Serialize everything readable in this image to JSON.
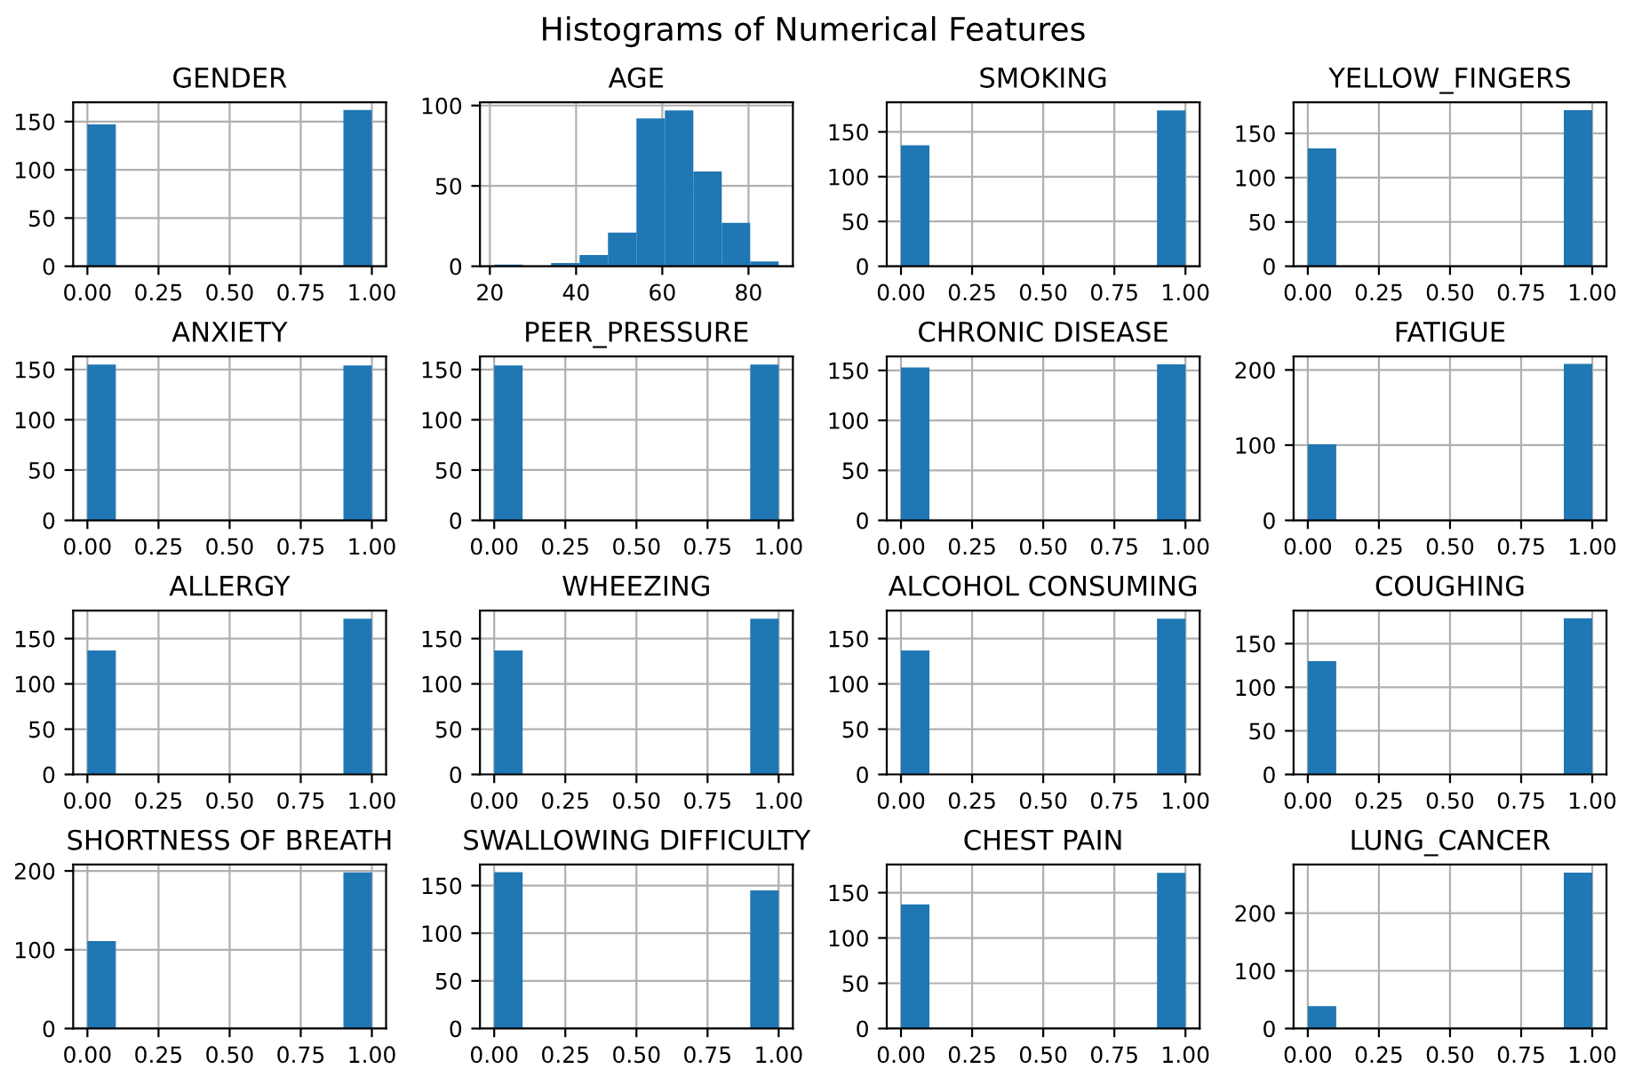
{
  "chart_data": [
    {
      "type": "histogram",
      "title": "GENDER",
      "annotations": [
        "Histograms of Numerical Features"
      ],
      "bins": [
        0,
        0.1,
        0.2,
        0.3,
        0.4,
        0.5,
        0.6,
        0.7,
        0.8,
        0.9,
        1.0
      ],
      "values": [
        147,
        0,
        0,
        0,
        0,
        0,
        0,
        0,
        0,
        162
      ],
      "color": "#1f77b4",
      "xlim": [
        -0.05,
        1.05
      ],
      "xticks": [
        {
          "value": 0,
          "label": "0.00"
        },
        {
          "value": 0.25,
          "label": "0.25"
        },
        {
          "value": 0.5,
          "label": "0.50"
        },
        {
          "value": 0.75,
          "label": "0.75"
        },
        {
          "value": 1,
          "label": "1.00"
        }
      ],
      "ylim": [
        0,
        170
      ],
      "yticks": [
        0,
        50,
        100,
        150
      ],
      "grid": true
    },
    {
      "type": "histogram",
      "title": "AGE",
      "bins": [
        21,
        27.6,
        34.2,
        40.8,
        47.4,
        54,
        60.6,
        67.2,
        73.8,
        80.4,
        87
      ],
      "values": [
        1,
        0,
        2,
        7,
        21,
        92,
        97,
        59,
        27,
        3
      ],
      "color": "#1f77b4",
      "xlim": [
        17.7,
        90.3
      ],
      "xticks": [
        20,
        40,
        60,
        80
      ],
      "ylim": [
        0,
        102
      ],
      "yticks": [
        0,
        50,
        100
      ],
      "grid": true
    },
    {
      "type": "histogram",
      "title": "SMOKING",
      "bins": [
        0,
        0.1,
        0.2,
        0.3,
        0.4,
        0.5,
        0.6,
        0.7,
        0.8,
        0.9,
        1.0
      ],
      "values": [
        135,
        0,
        0,
        0,
        0,
        0,
        0,
        0,
        0,
        174
      ],
      "color": "#1f77b4",
      "xlim": [
        -0.05,
        1.05
      ],
      "xticks": [
        {
          "value": 0,
          "label": "0.00"
        },
        {
          "value": 0.25,
          "label": "0.25"
        },
        {
          "value": 0.5,
          "label": "0.50"
        },
        {
          "value": 0.75,
          "label": "0.75"
        },
        {
          "value": 1,
          "label": "1.00"
        }
      ],
      "ylim": [
        0,
        183
      ],
      "yticks": [
        0,
        50,
        100,
        150
      ],
      "grid": true
    },
    {
      "type": "histogram",
      "title": "YELLOW_FINGERS",
      "bins": [
        0,
        0.1,
        0.2,
        0.3,
        0.4,
        0.5,
        0.6,
        0.7,
        0.8,
        0.9,
        1.0
      ],
      "values": [
        133,
        0,
        0,
        0,
        0,
        0,
        0,
        0,
        0,
        176
      ],
      "color": "#1f77b4",
      "xlim": [
        -0.05,
        1.05
      ],
      "xticks": [
        {
          "value": 0,
          "label": "0.00"
        },
        {
          "value": 0.25,
          "label": "0.25"
        },
        {
          "value": 0.5,
          "label": "0.50"
        },
        {
          "value": 0.75,
          "label": "0.75"
        },
        {
          "value": 1,
          "label": "1.00"
        }
      ],
      "ylim": [
        0,
        185
      ],
      "yticks": [
        0,
        50,
        100,
        150
      ],
      "grid": true
    },
    {
      "type": "histogram",
      "title": "ANXIETY",
      "bins": [
        0,
        0.1,
        0.2,
        0.3,
        0.4,
        0.5,
        0.6,
        0.7,
        0.8,
        0.9,
        1.0
      ],
      "values": [
        155,
        0,
        0,
        0,
        0,
        0,
        0,
        0,
        0,
        154
      ],
      "color": "#1f77b4",
      "xlim": [
        -0.05,
        1.05
      ],
      "xticks": [
        {
          "value": 0,
          "label": "0.00"
        },
        {
          "value": 0.25,
          "label": "0.25"
        },
        {
          "value": 0.5,
          "label": "0.50"
        },
        {
          "value": 0.75,
          "label": "0.75"
        },
        {
          "value": 1,
          "label": "1.00"
        }
      ],
      "ylim": [
        0,
        163
      ],
      "yticks": [
        0,
        50,
        100,
        150
      ],
      "grid": true
    },
    {
      "type": "histogram",
      "title": "PEER_PRESSURE",
      "bins": [
        0,
        0.1,
        0.2,
        0.3,
        0.4,
        0.5,
        0.6,
        0.7,
        0.8,
        0.9,
        1.0
      ],
      "values": [
        154,
        0,
        0,
        0,
        0,
        0,
        0,
        0,
        0,
        155
      ],
      "color": "#1f77b4",
      "xlim": [
        -0.05,
        1.05
      ],
      "xticks": [
        {
          "value": 0,
          "label": "0.00"
        },
        {
          "value": 0.25,
          "label": "0.25"
        },
        {
          "value": 0.5,
          "label": "0.50"
        },
        {
          "value": 0.75,
          "label": "0.75"
        },
        {
          "value": 1,
          "label": "1.00"
        }
      ],
      "ylim": [
        0,
        163
      ],
      "yticks": [
        0,
        50,
        100,
        150
      ],
      "grid": true
    },
    {
      "type": "histogram",
      "title": "CHRONIC DISEASE",
      "bins": [
        0,
        0.1,
        0.2,
        0.3,
        0.4,
        0.5,
        0.6,
        0.7,
        0.8,
        0.9,
        1.0
      ],
      "values": [
        153,
        0,
        0,
        0,
        0,
        0,
        0,
        0,
        0,
        156
      ],
      "color": "#1f77b4",
      "xlim": [
        -0.05,
        1.05
      ],
      "xticks": [
        {
          "value": 0,
          "label": "0.00"
        },
        {
          "value": 0.25,
          "label": "0.25"
        },
        {
          "value": 0.5,
          "label": "0.50"
        },
        {
          "value": 0.75,
          "label": "0.75"
        },
        {
          "value": 1,
          "label": "1.00"
        }
      ],
      "ylim": [
        0,
        164
      ],
      "yticks": [
        0,
        50,
        100,
        150
      ],
      "grid": true
    },
    {
      "type": "histogram",
      "title": "FATIGUE",
      "bins": [
        0,
        0.1,
        0.2,
        0.3,
        0.4,
        0.5,
        0.6,
        0.7,
        0.8,
        0.9,
        1.0
      ],
      "values": [
        101,
        0,
        0,
        0,
        0,
        0,
        0,
        0,
        0,
        208
      ],
      "color": "#1f77b4",
      "xlim": [
        -0.05,
        1.05
      ],
      "xticks": [
        {
          "value": 0,
          "label": "0.00"
        },
        {
          "value": 0.25,
          "label": "0.25"
        },
        {
          "value": 0.5,
          "label": "0.50"
        },
        {
          "value": 0.75,
          "label": "0.75"
        },
        {
          "value": 1,
          "label": "1.00"
        }
      ],
      "ylim": [
        0,
        218
      ],
      "yticks": [
        0,
        100,
        200
      ],
      "grid": true
    },
    {
      "type": "histogram",
      "title": "ALLERGY",
      "bins": [
        0,
        0.1,
        0.2,
        0.3,
        0.4,
        0.5,
        0.6,
        0.7,
        0.8,
        0.9,
        1.0
      ],
      "values": [
        137,
        0,
        0,
        0,
        0,
        0,
        0,
        0,
        0,
        172
      ],
      "color": "#1f77b4",
      "xlim": [
        -0.05,
        1.05
      ],
      "xticks": [
        {
          "value": 0,
          "label": "0.00"
        },
        {
          "value": 0.25,
          "label": "0.25"
        },
        {
          "value": 0.5,
          "label": "0.50"
        },
        {
          "value": 0.75,
          "label": "0.75"
        },
        {
          "value": 1,
          "label": "1.00"
        }
      ],
      "ylim": [
        0,
        181
      ],
      "yticks": [
        0,
        50,
        100,
        150
      ],
      "grid": true
    },
    {
      "type": "histogram",
      "title": "WHEEZING",
      "bins": [
        0,
        0.1,
        0.2,
        0.3,
        0.4,
        0.5,
        0.6,
        0.7,
        0.8,
        0.9,
        1.0
      ],
      "values": [
        137,
        0,
        0,
        0,
        0,
        0,
        0,
        0,
        0,
        172
      ],
      "color": "#1f77b4",
      "xlim": [
        -0.05,
        1.05
      ],
      "xticks": [
        {
          "value": 0,
          "label": "0.00"
        },
        {
          "value": 0.25,
          "label": "0.25"
        },
        {
          "value": 0.5,
          "label": "0.50"
        },
        {
          "value": 0.75,
          "label": "0.75"
        },
        {
          "value": 1,
          "label": "1.00"
        }
      ],
      "ylim": [
        0,
        181
      ],
      "yticks": [
        0,
        50,
        100,
        150
      ],
      "grid": true
    },
    {
      "type": "histogram",
      "title": "ALCOHOL CONSUMING",
      "bins": [
        0,
        0.1,
        0.2,
        0.3,
        0.4,
        0.5,
        0.6,
        0.7,
        0.8,
        0.9,
        1.0
      ],
      "values": [
        137,
        0,
        0,
        0,
        0,
        0,
        0,
        0,
        0,
        172
      ],
      "color": "#1f77b4",
      "xlim": [
        -0.05,
        1.05
      ],
      "xticks": [
        {
          "value": 0,
          "label": "0.00"
        },
        {
          "value": 0.25,
          "label": "0.25"
        },
        {
          "value": 0.5,
          "label": "0.50"
        },
        {
          "value": 0.75,
          "label": "0.75"
        },
        {
          "value": 1,
          "label": "1.00"
        }
      ],
      "ylim": [
        0,
        181
      ],
      "yticks": [
        0,
        50,
        100,
        150
      ],
      "grid": true
    },
    {
      "type": "histogram",
      "title": "COUGHING",
      "bins": [
        0,
        0.1,
        0.2,
        0.3,
        0.4,
        0.5,
        0.6,
        0.7,
        0.8,
        0.9,
        1.0
      ],
      "values": [
        130,
        0,
        0,
        0,
        0,
        0,
        0,
        0,
        0,
        179
      ],
      "color": "#1f77b4",
      "xlim": [
        -0.05,
        1.05
      ],
      "xticks": [
        {
          "value": 0,
          "label": "0.00"
        },
        {
          "value": 0.25,
          "label": "0.25"
        },
        {
          "value": 0.5,
          "label": "0.50"
        },
        {
          "value": 0.75,
          "label": "0.75"
        },
        {
          "value": 1,
          "label": "1.00"
        }
      ],
      "ylim": [
        0,
        188
      ],
      "yticks": [
        0,
        50,
        100,
        150
      ],
      "grid": true
    },
    {
      "type": "histogram",
      "title": "SHORTNESS OF BREATH",
      "bins": [
        0,
        0.1,
        0.2,
        0.3,
        0.4,
        0.5,
        0.6,
        0.7,
        0.8,
        0.9,
        1.0
      ],
      "values": [
        111,
        0,
        0,
        0,
        0,
        0,
        0,
        0,
        0,
        198
      ],
      "color": "#1f77b4",
      "xlim": [
        -0.05,
        1.05
      ],
      "xticks": [
        {
          "value": 0,
          "label": "0.00"
        },
        {
          "value": 0.25,
          "label": "0.25"
        },
        {
          "value": 0.5,
          "label": "0.50"
        },
        {
          "value": 0.75,
          "label": "0.75"
        },
        {
          "value": 1,
          "label": "1.00"
        }
      ],
      "ylim": [
        0,
        208
      ],
      "yticks": [
        0,
        100,
        200
      ],
      "grid": true
    },
    {
      "type": "histogram",
      "title": "SWALLOWING DIFFICULTY",
      "bins": [
        0,
        0.1,
        0.2,
        0.3,
        0.4,
        0.5,
        0.6,
        0.7,
        0.8,
        0.9,
        1.0
      ],
      "values": [
        164,
        0,
        0,
        0,
        0,
        0,
        0,
        0,
        0,
        145
      ],
      "color": "#1f77b4",
      "xlim": [
        -0.05,
        1.05
      ],
      "xticks": [
        {
          "value": 0,
          "label": "0.00"
        },
        {
          "value": 0.25,
          "label": "0.25"
        },
        {
          "value": 0.5,
          "label": "0.50"
        },
        {
          "value": 0.75,
          "label": "0.75"
        },
        {
          "value": 1,
          "label": "1.00"
        }
      ],
      "ylim": [
        0,
        172
      ],
      "yticks": [
        0,
        50,
        100,
        150
      ],
      "grid": true
    },
    {
      "type": "histogram",
      "title": "CHEST PAIN",
      "bins": [
        0,
        0.1,
        0.2,
        0.3,
        0.4,
        0.5,
        0.6,
        0.7,
        0.8,
        0.9,
        1.0
      ],
      "values": [
        137,
        0,
        0,
        0,
        0,
        0,
        0,
        0,
        0,
        172
      ],
      "color": "#1f77b4",
      "xlim": [
        -0.05,
        1.05
      ],
      "xticks": [
        {
          "value": 0,
          "label": "0.00"
        },
        {
          "value": 0.25,
          "label": "0.25"
        },
        {
          "value": 0.5,
          "label": "0.50"
        },
        {
          "value": 0.75,
          "label": "0.75"
        },
        {
          "value": 1,
          "label": "1.00"
        }
      ],
      "ylim": [
        0,
        181
      ],
      "yticks": [
        0,
        50,
        100,
        150
      ],
      "grid": true
    },
    {
      "type": "histogram",
      "title": "LUNG_CANCER",
      "bins": [
        0,
        0.1,
        0.2,
        0.3,
        0.4,
        0.5,
        0.6,
        0.7,
        0.8,
        0.9,
        1.0
      ],
      "values": [
        39,
        0,
        0,
        0,
        0,
        0,
        0,
        0,
        0,
        270
      ],
      "color": "#1f77b4",
      "xlim": [
        -0.05,
        1.05
      ],
      "xticks": [
        {
          "value": 0,
          "label": "0.00"
        },
        {
          "value": 0.25,
          "label": "0.25"
        },
        {
          "value": 0.5,
          "label": "0.50"
        },
        {
          "value": 0.75,
          "label": "0.75"
        },
        {
          "value": 1,
          "label": "1.00"
        }
      ],
      "ylim": [
        0,
        284
      ],
      "yticks": [
        0,
        100,
        200
      ],
      "grid": true
    }
  ]
}
